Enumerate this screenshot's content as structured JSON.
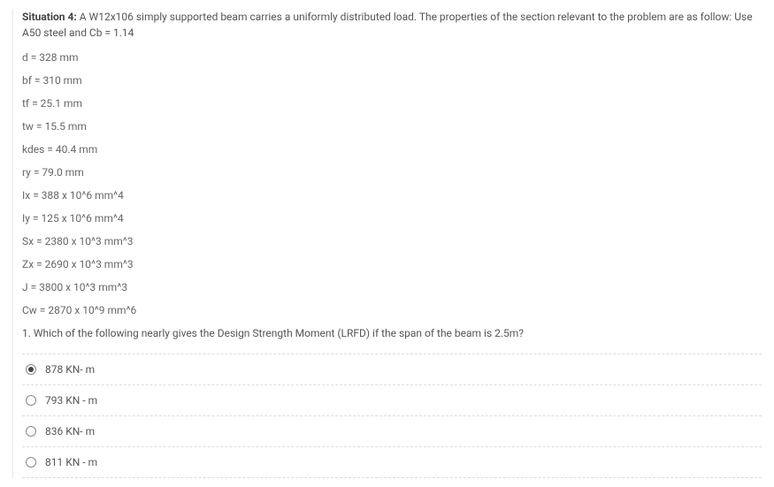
{
  "situation": {
    "label": "Situation 4:",
    "text": "A W12x106 simply supported beam carries a uniformly distributed load. The properties of the section relevant to the problem are as follow: Use A50 steel and Cb = 1.14"
  },
  "params": [
    "d = 328 mm",
    "bf = 310 mm",
    "tf = 25.1 mm",
    "tw = 15.5 mm",
    "kdes = 40.4 mm",
    "ry = 79.0 mm",
    "Ix = 388 x 10^6 mm^4",
    "Iy = 125 x 10^6 mm^4",
    "Sx = 2380 x 10^3 mm^3",
    "Zx = 2690 x 10^3 mm^3",
    "J = 3800 x 10^3 mm^3",
    "Cw = 2870 x 10^9 mm^6"
  ],
  "question": "1. Which of the following nearly gives the Design Strength Moment (LRFD) if the span of the beam is 2.5m?",
  "options": [
    {
      "label": "878 KN- m",
      "selected": true
    },
    {
      "label": "793 KN - m",
      "selected": false
    },
    {
      "label": "836 KN- m",
      "selected": false
    },
    {
      "label": "811 KN - m",
      "selected": false
    }
  ]
}
